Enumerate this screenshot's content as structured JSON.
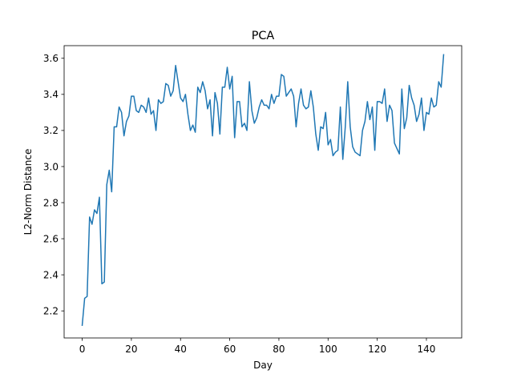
{
  "chart_data": {
    "type": "line",
    "title": "PCA",
    "xlabel": "Day",
    "ylabel": "L2-Norm Distance",
    "xlim": [
      -7.35,
      154.35
    ],
    "ylim": [
      2.05,
      3.67
    ],
    "x_ticks": [
      0,
      20,
      40,
      60,
      80,
      100,
      120,
      140
    ],
    "y_ticks": [
      2.2,
      2.4,
      2.6,
      2.8,
      3.0,
      3.2,
      3.4,
      3.6
    ],
    "x_tick_labels": [
      "0",
      "20",
      "40",
      "60",
      "80",
      "100",
      "120",
      "140"
    ],
    "y_tick_labels": [
      "2.2",
      "2.4",
      "2.6",
      "2.8",
      "3.0",
      "3.2",
      "3.4",
      "3.6"
    ],
    "grid": false,
    "line_color": "#1f77b4",
    "series": [
      {
        "values": [
          2.12,
          2.27,
          2.28,
          2.72,
          2.68,
          2.76,
          2.74,
          2.83,
          2.35,
          2.36,
          2.9,
          2.98,
          2.86,
          3.22,
          3.22,
          3.33,
          3.3,
          3.17,
          3.25,
          3.28,
          3.39,
          3.39,
          3.31,
          3.3,
          3.34,
          3.33,
          3.3,
          3.38,
          3.29,
          3.31,
          3.2,
          3.37,
          3.35,
          3.36,
          3.46,
          3.45,
          3.39,
          3.42,
          3.56,
          3.47,
          3.38,
          3.36,
          3.4,
          3.29,
          3.2,
          3.23,
          3.19,
          3.44,
          3.41,
          3.47,
          3.42,
          3.32,
          3.37,
          3.17,
          3.41,
          3.35,
          3.18,
          3.44,
          3.44,
          3.55,
          3.43,
          3.5,
          3.16,
          3.36,
          3.36,
          3.22,
          3.24,
          3.2,
          3.47,
          3.31,
          3.24,
          3.27,
          3.33,
          3.37,
          3.34,
          3.34,
          3.32,
          3.4,
          3.35,
          3.39,
          3.39,
          3.51,
          3.5,
          3.39,
          3.41,
          3.43,
          3.39,
          3.22,
          3.35,
          3.43,
          3.34,
          3.32,
          3.33,
          3.42,
          3.33,
          3.18,
          3.09,
          3.22,
          3.21,
          3.3,
          3.12,
          3.15,
          3.06,
          3.08,
          3.09,
          3.33,
          3.04,
          3.22,
          3.47,
          3.22,
          3.11,
          3.08,
          3.07,
          3.06,
          3.2,
          3.25,
          3.36,
          3.26,
          3.33,
          3.09,
          3.36,
          3.36,
          3.35,
          3.43,
          3.25,
          3.34,
          3.31,
          3.13,
          3.1,
          3.07,
          3.43,
          3.21,
          3.27,
          3.45,
          3.38,
          3.34,
          3.25,
          3.29,
          3.38,
          3.2,
          3.3,
          3.29,
          3.38,
          3.33,
          3.34,
          3.47,
          3.44,
          3.62
        ]
      }
    ]
  }
}
